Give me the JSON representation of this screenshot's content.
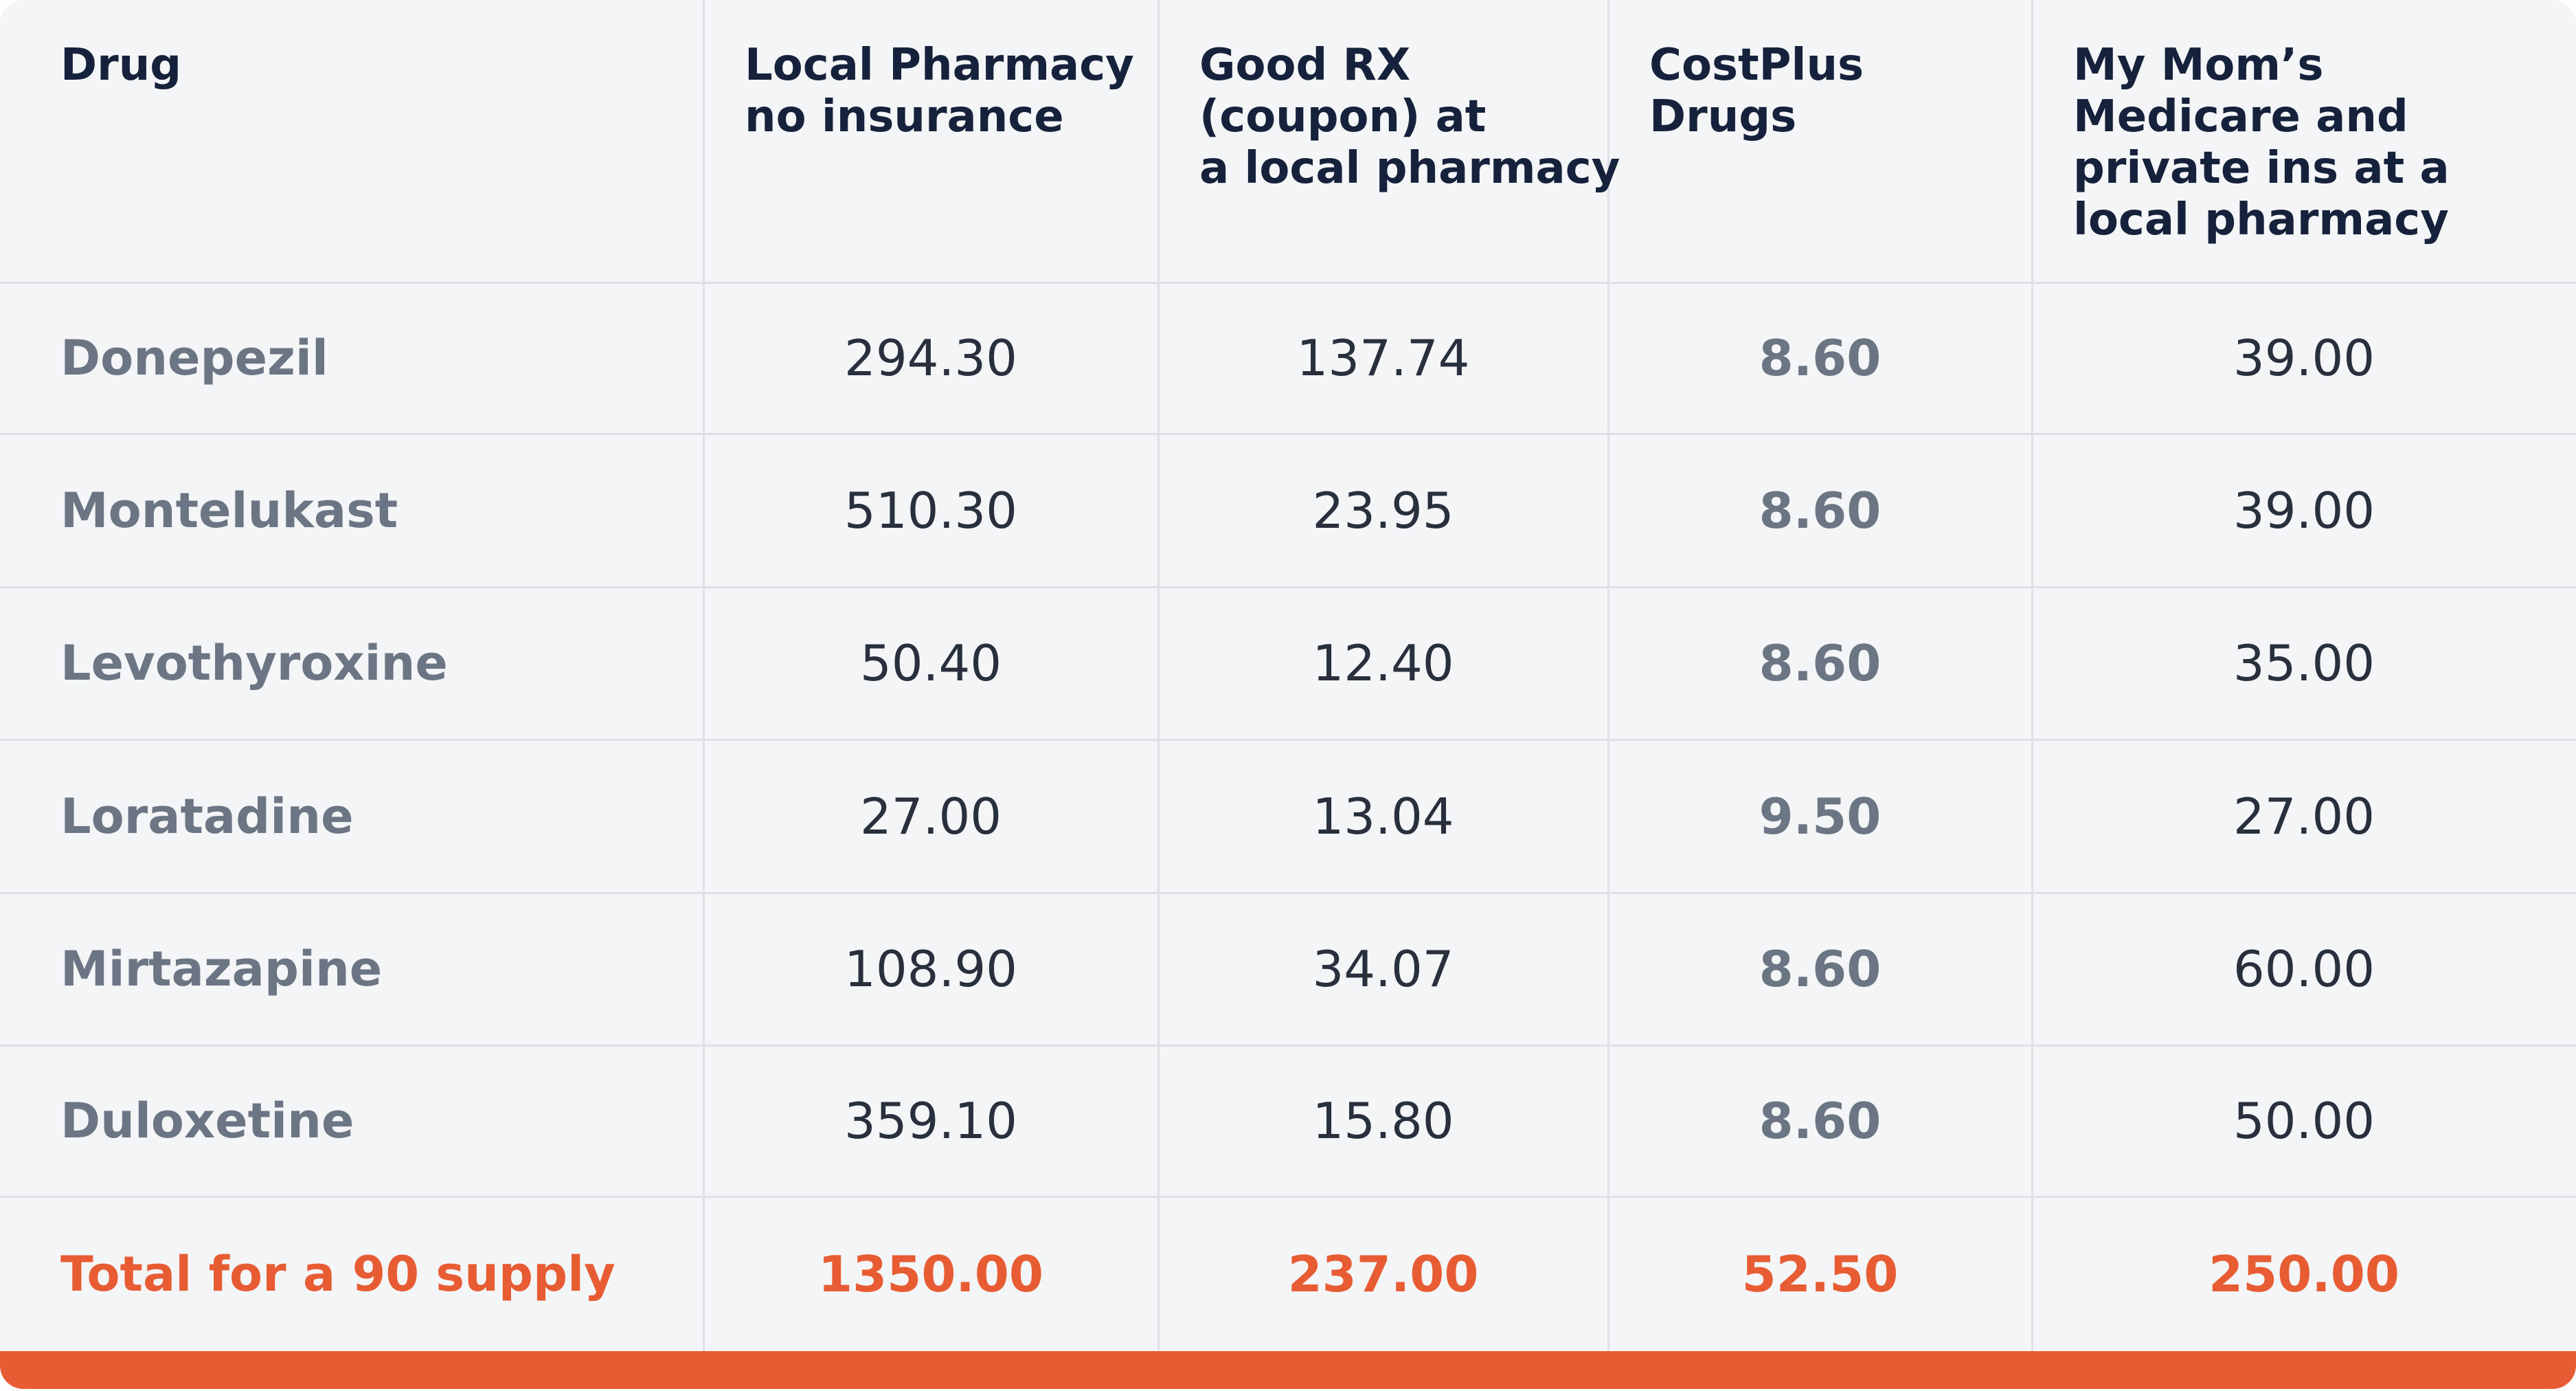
{
  "table": {
    "header": [
      [
        "Drug"
      ],
      [
        "Local Pharmacy",
        "no insurance"
      ],
      [
        "Good RX",
        "(coupon) at",
        "a local pharmacy"
      ],
      [
        "CostPlus",
        "Drugs"
      ],
      [
        "My Mom’s",
        "Medicare and",
        "private ins at a",
        "local pharmacy"
      ]
    ],
    "rows": [
      [
        "Donepezil",
        "294.30",
        "137.74",
        "8.60",
        "39.00"
      ],
      [
        "Montelukast",
        "510.30",
        "23.95",
        "8.60",
        "39.00"
      ],
      [
        "Levothyroxine",
        "50.40",
        "12.40",
        "8.60",
        "35.00"
      ],
      [
        "Loratadine",
        "27.00",
        "13.04",
        "9.50",
        "27.00"
      ],
      [
        "Mirtazapine",
        "108.90",
        "34.07",
        "8.60",
        "60.00"
      ],
      [
        "Duloxetine",
        "359.10",
        "15.80",
        "8.60",
        "50.00"
      ]
    ],
    "total": [
      "Total for a 90 supply",
      "1350.00",
      "237.00",
      "52.50",
      "250.00"
    ]
  }
}
